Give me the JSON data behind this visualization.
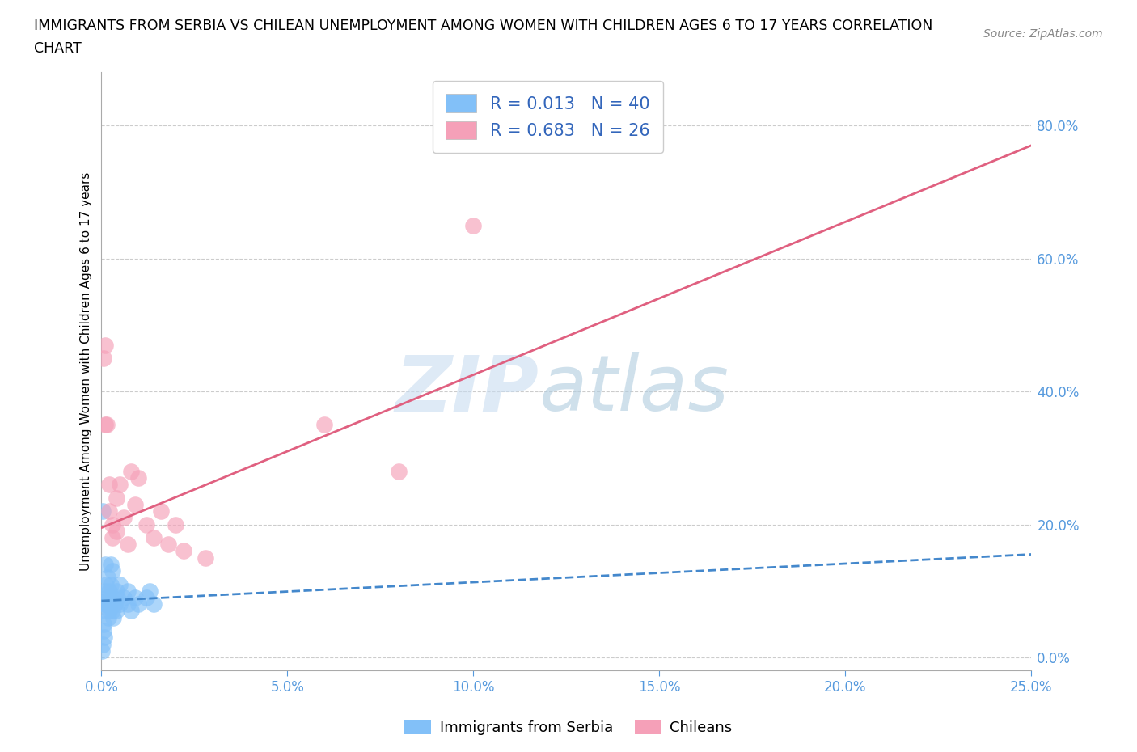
{
  "title_line1": "IMMIGRANTS FROM SERBIA VS CHILEAN UNEMPLOYMENT AMONG WOMEN WITH CHILDREN AGES 6 TO 17 YEARS CORRELATION",
  "title_line2": "CHART",
  "source": "Source: ZipAtlas.com",
  "ylabel": "Unemployment Among Women with Children Ages 6 to 17 years",
  "xlabel_blue": "Immigrants from Serbia",
  "xlabel_pink": "Chileans",
  "r_blue": 0.013,
  "n_blue": 40,
  "r_pink": 0.683,
  "n_pink": 26,
  "color_blue": "#82C0F8",
  "color_pink": "#F5A0B8",
  "trendline_blue": "#4488CC",
  "trendline_pink": "#E06080",
  "xlim": [
    0.0,
    0.25
  ],
  "ylim": [
    -0.02,
    0.88
  ],
  "yticks": [
    0.0,
    0.2,
    0.4,
    0.6,
    0.8
  ],
  "ytick_labels": [
    "0.0%",
    "20.0%",
    "40.0%",
    "60.0%",
    "80.0%"
  ],
  "xticks": [
    0.0,
    0.05,
    0.1,
    0.15,
    0.2,
    0.25
  ],
  "xtick_labels": [
    "0.0%",
    "5.0%",
    "10.0%",
    "15.0%",
    "20.0%",
    "25.0%"
  ],
  "blue_x": [
    0.0003,
    0.0005,
    0.0007,
    0.001,
    0.001,
    0.001,
    0.0012,
    0.0013,
    0.0015,
    0.0016,
    0.0018,
    0.002,
    0.002,
    0.002,
    0.0022,
    0.0025,
    0.0025,
    0.003,
    0.003,
    0.003,
    0.0032,
    0.0035,
    0.004,
    0.004,
    0.0042,
    0.005,
    0.005,
    0.006,
    0.007,
    0.007,
    0.008,
    0.009,
    0.01,
    0.012,
    0.013,
    0.014,
    0.0005,
    0.0008,
    0.0004,
    0.0002
  ],
  "blue_y": [
    0.22,
    0.04,
    0.08,
    0.1,
    0.14,
    0.07,
    0.11,
    0.08,
    0.09,
    0.12,
    0.06,
    0.09,
    0.07,
    0.1,
    0.08,
    0.14,
    0.11,
    0.07,
    0.09,
    0.13,
    0.06,
    0.08,
    0.1,
    0.07,
    0.09,
    0.08,
    0.11,
    0.09,
    0.08,
    0.1,
    0.07,
    0.09,
    0.08,
    0.09,
    0.1,
    0.08,
    0.05,
    0.03,
    0.02,
    0.01
  ],
  "pink_x": [
    0.0005,
    0.001,
    0.0015,
    0.002,
    0.002,
    0.003,
    0.003,
    0.004,
    0.004,
    0.005,
    0.006,
    0.007,
    0.008,
    0.009,
    0.01,
    0.012,
    0.014,
    0.016,
    0.018,
    0.02,
    0.022,
    0.028,
    0.06,
    0.08,
    0.1,
    0.001
  ],
  "pink_y": [
    0.45,
    0.47,
    0.35,
    0.26,
    0.22,
    0.2,
    0.18,
    0.24,
    0.19,
    0.26,
    0.21,
    0.17,
    0.28,
    0.23,
    0.27,
    0.2,
    0.18,
    0.22,
    0.17,
    0.2,
    0.16,
    0.15,
    0.35,
    0.28,
    0.65,
    0.35
  ],
  "pink_trend_x0": 0.0,
  "pink_trend_y0": 0.195,
  "pink_trend_x1": 0.25,
  "pink_trend_y1": 0.77,
  "blue_trend_x0": 0.0,
  "blue_trend_y0": 0.085,
  "blue_trend_x1": 0.25,
  "blue_trend_y1": 0.155,
  "watermark_zip_color": "#C8DCF0",
  "watermark_atlas_color": "#B0CCDF",
  "background_color": "#FFFFFF",
  "grid_color": "#CCCCCC"
}
